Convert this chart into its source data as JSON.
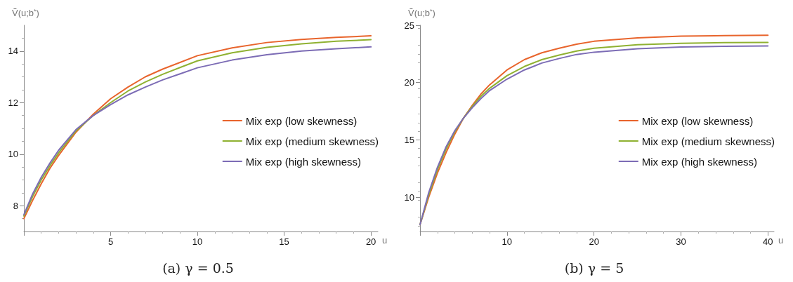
{
  "chart_data": [
    {
      "type": "line",
      "title": "(a) γ = 0.5",
      "xlabel": "u",
      "ylabel": "Ṽ(u;b$^{*}$)",
      "xlim": [
        0,
        20.4
      ],
      "ylim": [
        7,
        15
      ],
      "xticks": [
        {
          "value": 0,
          "label": null
        },
        5,
        10,
        15,
        20
      ],
      "yticks": [
        8,
        10,
        12,
        14
      ],
      "legend": "right",
      "grid": false,
      "marker": "none",
      "line_style": "solid",
      "x": [
        0,
        0.5,
        1,
        1.5,
        2,
        3,
        4,
        5,
        6,
        7,
        8,
        10,
        12,
        14,
        16,
        18,
        20
      ],
      "series": [
        {
          "name": "Mix exp (low skewness)",
          "color": "#e8642c",
          "values": [
            7.5,
            8.2,
            8.85,
            9.45,
            9.95,
            10.85,
            11.55,
            12.15,
            12.6,
            13.0,
            13.3,
            13.82,
            14.12,
            14.33,
            14.45,
            14.53,
            14.59
          ]
        },
        {
          "name": "Mix exp (medium skewness)",
          "color": "#8fb131",
          "values": [
            7.6,
            8.35,
            9.0,
            9.55,
            10.05,
            10.9,
            11.5,
            12.0,
            12.45,
            12.8,
            13.1,
            13.62,
            13.93,
            14.14,
            14.28,
            14.38,
            14.44
          ]
        },
        {
          "name": "Mix exp (high skewness)",
          "color": "#7c6cb5",
          "values": [
            7.65,
            8.45,
            9.1,
            9.65,
            10.15,
            10.95,
            11.5,
            11.92,
            12.3,
            12.6,
            12.88,
            13.35,
            13.65,
            13.86,
            14.0,
            14.09,
            14.16
          ]
        }
      ]
    },
    {
      "type": "line",
      "title": "(b) γ = 5",
      "xlabel": "u",
      "ylabel": "Ṽ(u;b$^{*}$)",
      "xlim": [
        0,
        40.7
      ],
      "ylim": [
        7,
        25
      ],
      "xticks": [
        {
          "value": 0,
          "label": null
        },
        10,
        20,
        30,
        40
      ],
      "yticks": [
        10,
        15,
        20,
        25
      ],
      "legend": "right",
      "grid": false,
      "marker": "none",
      "line_style": "solid",
      "x": [
        0,
        1,
        2,
        3,
        4,
        5,
        6,
        7,
        8,
        10,
        12,
        14,
        16,
        18,
        20,
        25,
        30,
        35,
        40
      ],
      "series": [
        {
          "name": "Mix exp (low skewness)",
          "color": "#e8642c",
          "values": [
            7.6,
            10.0,
            12.1,
            13.9,
            15.5,
            16.9,
            18.0,
            19.0,
            19.8,
            21.1,
            22.0,
            22.6,
            23.0,
            23.35,
            23.6,
            23.9,
            24.05,
            24.1,
            24.13
          ]
        },
        {
          "name": "Mix exp (medium skewness)",
          "color": "#8fb131",
          "values": [
            7.6,
            10.2,
            12.4,
            14.2,
            15.7,
            16.9,
            17.9,
            18.8,
            19.5,
            20.6,
            21.4,
            22.0,
            22.4,
            22.75,
            23.0,
            23.3,
            23.42,
            23.48,
            23.5
          ]
        },
        {
          "name": "Mix exp (high skewness)",
          "color": "#7c6cb5",
          "values": [
            7.6,
            10.4,
            12.6,
            14.4,
            15.8,
            16.9,
            17.8,
            18.6,
            19.3,
            20.3,
            21.1,
            21.7,
            22.1,
            22.45,
            22.65,
            22.95,
            23.1,
            23.17,
            23.2
          ]
        }
      ]
    }
  ]
}
